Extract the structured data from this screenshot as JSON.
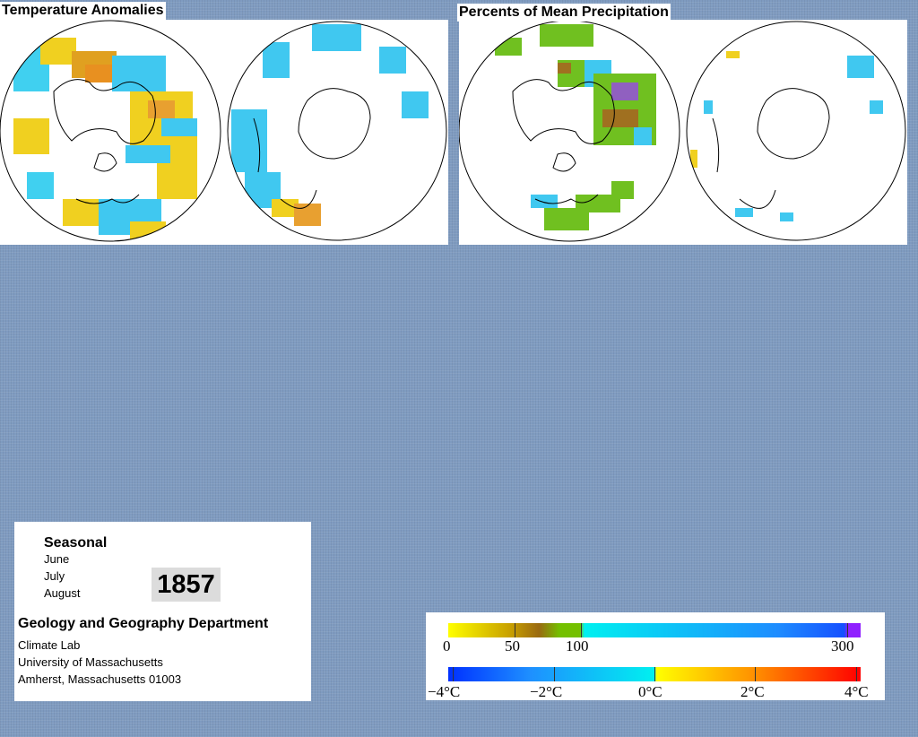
{
  "temperature_panel": {
    "title": "Temperature Anomalies"
  },
  "precipitation_panel": {
    "title": "Percents of Mean Precipitation"
  },
  "info": {
    "period": "Seasonal",
    "months": [
      "June",
      "July",
      "August"
    ],
    "year": "1857",
    "department": "Geology and Geography Department",
    "address_lines": [
      "Climate Lab",
      "University of Massachusetts",
      "Amherst, Massachusetts 01003"
    ]
  },
  "precip_legend": {
    "labels": [
      "0",
      "50",
      "100",
      "300"
    ],
    "colors": [
      "#ffff00",
      "#c8a000",
      "#9a6a10",
      "#74c000",
      "#00f0f0",
      "#1e8cff",
      "#1650ff",
      "#9020ff"
    ]
  },
  "temp_legend": {
    "labels": [
      "−4°C",
      "−2°C",
      "0°C",
      "2°C",
      "4°C"
    ],
    "colors": [
      "#0030ff",
      "#1e90ff",
      "#00f0f0",
      "#ffff00",
      "#ff8c00",
      "#ff0000"
    ]
  },
  "icons": [
    "northern-hemisphere-globe-icon",
    "southern-hemisphere-globe-icon"
  ]
}
